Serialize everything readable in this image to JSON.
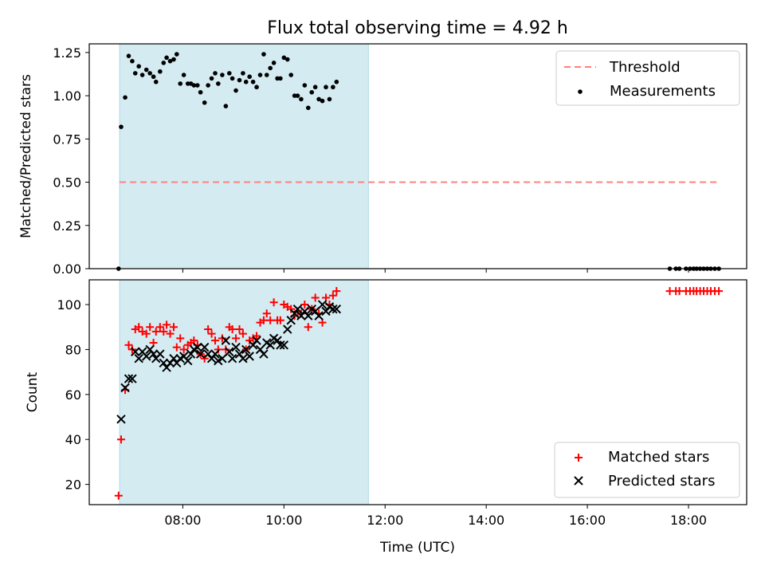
{
  "chart_data": [
    {
      "type": "scatter",
      "title": "Flux total observing time = 4.92 h",
      "xlabel": "",
      "ylabel": "Matched/Predicted stars",
      "x_unit": "time (UTC), hours",
      "xlim": [
        6.15,
        19.15
      ],
      "ylim": [
        0,
        1.3
      ],
      "yticks": [
        0,
        0.25,
        0.5,
        0.75,
        1.0,
        1.25
      ],
      "yticklabels": [
        "0.00",
        "0.25",
        "0.50",
        "0.75",
        "1.00",
        "1.25"
      ],
      "xticks": [
        8,
        10,
        12,
        14,
        16,
        18
      ],
      "shaded_interval": [
        6.75,
        11.67
      ],
      "legend_position": "top-right",
      "colors": {
        "shade": "#add8e6",
        "threshold": "#ff7f7f",
        "points": "#000000"
      },
      "threshold": {
        "name": "Threshold",
        "value": 0.5,
        "x": [
          6.75,
          18.6
        ]
      },
      "series": [
        {
          "name": "Measurements",
          "points": [
            [
              6.73,
              0.0
            ],
            [
              6.78,
              0.82
            ],
            [
              6.86,
              0.99
            ],
            [
              6.93,
              1.23
            ],
            [
              7.0,
              1.2
            ],
            [
              7.06,
              1.13
            ],
            [
              7.13,
              1.17
            ],
            [
              7.2,
              1.12
            ],
            [
              7.28,
              1.15
            ],
            [
              7.35,
              1.13
            ],
            [
              7.42,
              1.11
            ],
            [
              7.47,
              1.08
            ],
            [
              7.55,
              1.14
            ],
            [
              7.62,
              1.19
            ],
            [
              7.68,
              1.22
            ],
            [
              7.75,
              1.2
            ],
            [
              7.82,
              1.21
            ],
            [
              7.88,
              1.24
            ],
            [
              7.95,
              1.07
            ],
            [
              8.02,
              1.12
            ],
            [
              8.1,
              1.07
            ],
            [
              8.16,
              1.07
            ],
            [
              8.22,
              1.06
            ],
            [
              8.29,
              1.06
            ],
            [
              8.35,
              1.02
            ],
            [
              8.43,
              0.96
            ],
            [
              8.5,
              1.06
            ],
            [
              8.57,
              1.1
            ],
            [
              8.64,
              1.13
            ],
            [
              8.7,
              1.07
            ],
            [
              8.78,
              1.12
            ],
            [
              8.85,
              0.94
            ],
            [
              8.92,
              1.13
            ],
            [
              8.98,
              1.1
            ],
            [
              9.05,
              1.03
            ],
            [
              9.12,
              1.09
            ],
            [
              9.19,
              1.13
            ],
            [
              9.25,
              1.08
            ],
            [
              9.32,
              1.11
            ],
            [
              9.39,
              1.08
            ],
            [
              9.46,
              1.05
            ],
            [
              9.53,
              1.12
            ],
            [
              9.6,
              1.24
            ],
            [
              9.66,
              1.12
            ],
            [
              9.73,
              1.16
            ],
            [
              9.8,
              1.19
            ],
            [
              9.87,
              1.1
            ],
            [
              9.93,
              1.1
            ],
            [
              10.0,
              1.22
            ],
            [
              10.07,
              1.21
            ],
            [
              10.14,
              1.12
            ],
            [
              10.21,
              1.0
            ],
            [
              10.27,
              1.0
            ],
            [
              10.34,
              0.98
            ],
            [
              10.41,
              1.06
            ],
            [
              10.48,
              0.93
            ],
            [
              10.55,
              1.02
            ],
            [
              10.62,
              1.05
            ],
            [
              10.69,
              0.98
            ],
            [
              10.76,
              0.97
            ],
            [
              10.83,
              1.05
            ],
            [
              10.9,
              0.98
            ],
            [
              10.97,
              1.05
            ],
            [
              11.04,
              1.08
            ],
            [
              17.63,
              0.0
            ],
            [
              17.75,
              0.0
            ],
            [
              17.82,
              0.0
            ],
            [
              17.95,
              0.0
            ],
            [
              18.03,
              0.0
            ],
            [
              18.1,
              0.0
            ],
            [
              18.16,
              0.0
            ],
            [
              18.23,
              0.0
            ],
            [
              18.3,
              0.0
            ],
            [
              18.37,
              0.0
            ],
            [
              18.44,
              0.0
            ],
            [
              18.52,
              0.0
            ],
            [
              18.6,
              0.0
            ]
          ]
        }
      ],
      "legend": [
        "Threshold",
        "Measurements"
      ]
    },
    {
      "type": "scatter",
      "title": "",
      "xlabel": "Time (UTC)",
      "ylabel": "Count",
      "x_unit": "time (UTC), hours",
      "xlim": [
        6.15,
        19.15
      ],
      "ylim": [
        11,
        111
      ],
      "yticks": [
        20,
        40,
        60,
        80,
        100
      ],
      "yticklabels": [
        "20",
        "40",
        "60",
        "80",
        "100"
      ],
      "xticks": [
        8,
        10,
        12,
        14,
        16,
        18
      ],
      "xticklabels": [
        "08:00",
        "10:00",
        "12:00",
        "14:00",
        "16:00",
        "18:00"
      ],
      "shaded_interval": [
        6.75,
        11.67
      ],
      "legend_position": "bottom-right",
      "colors": {
        "shade": "#add8e6",
        "matched": "#ff0000",
        "predicted": "#000000"
      },
      "series": [
        {
          "name": "Matched stars",
          "marker": "+",
          "points": [
            [
              6.73,
              15
            ],
            [
              6.78,
              40
            ],
            [
              6.86,
              62
            ],
            [
              6.93,
              82
            ],
            [
              7.0,
              80
            ],
            [
              7.06,
              89
            ],
            [
              7.13,
              90
            ],
            [
              7.2,
              88
            ],
            [
              7.28,
              87
            ],
            [
              7.35,
              90
            ],
            [
              7.42,
              83
            ],
            [
              7.47,
              88
            ],
            [
              7.55,
              90
            ],
            [
              7.62,
              88
            ],
            [
              7.68,
              91
            ],
            [
              7.75,
              87
            ],
            [
              7.82,
              90
            ],
            [
              7.88,
              81
            ],
            [
              7.95,
              85
            ],
            [
              8.02,
              80
            ],
            [
              8.1,
              82
            ],
            [
              8.16,
              83
            ],
            [
              8.22,
              84
            ],
            [
              8.29,
              82
            ],
            [
              8.35,
              78
            ],
            [
              8.43,
              76
            ],
            [
              8.5,
              89
            ],
            [
              8.57,
              87
            ],
            [
              8.64,
              84
            ],
            [
              8.7,
              80
            ],
            [
              8.78,
              85
            ],
            [
              8.85,
              80
            ],
            [
              8.92,
              90
            ],
            [
              8.98,
              89
            ],
            [
              9.05,
              85
            ],
            [
              9.12,
              89
            ],
            [
              9.19,
              87
            ],
            [
              9.25,
              80
            ],
            [
              9.32,
              84
            ],
            [
              9.39,
              85
            ],
            [
              9.46,
              86
            ],
            [
              9.53,
              92
            ],
            [
              9.6,
              93
            ],
            [
              9.66,
              96
            ],
            [
              9.73,
              93
            ],
            [
              9.8,
              101
            ],
            [
              9.87,
              93
            ],
            [
              9.93,
              93
            ],
            [
              10.0,
              100
            ],
            [
              10.07,
              99
            ],
            [
              10.14,
              98
            ],
            [
              10.21,
              95
            ],
            [
              10.27,
              97
            ],
            [
              10.34,
              96
            ],
            [
              10.41,
              100
            ],
            [
              10.48,
              90
            ],
            [
              10.55,
              98
            ],
            [
              10.62,
              103
            ],
            [
              10.69,
              96
            ],
            [
              10.76,
              92
            ],
            [
              10.83,
              103
            ],
            [
              10.9,
              100
            ],
            [
              10.97,
              104
            ],
            [
              11.04,
              106
            ],
            [
              17.63,
              106
            ],
            [
              17.75,
              106
            ],
            [
              17.82,
              106
            ],
            [
              17.95,
              106
            ],
            [
              18.03,
              106
            ],
            [
              18.1,
              106
            ],
            [
              18.16,
              106
            ],
            [
              18.23,
              106
            ],
            [
              18.3,
              106
            ],
            [
              18.37,
              106
            ],
            [
              18.44,
              106
            ],
            [
              18.52,
              106
            ],
            [
              18.6,
              106
            ]
          ]
        },
        {
          "name": "Predicted stars",
          "marker": "x",
          "points": [
            [
              6.78,
              49
            ],
            [
              6.86,
              63
            ],
            [
              6.93,
              67
            ],
            [
              7.0,
              67
            ],
            [
              7.06,
              79
            ],
            [
              7.13,
              76
            ],
            [
              7.2,
              79
            ],
            [
              7.28,
              77
            ],
            [
              7.35,
              80
            ],
            [
              7.42,
              78
            ],
            [
              7.47,
              76
            ],
            [
              7.55,
              78
            ],
            [
              7.62,
              74
            ],
            [
              7.68,
              72
            ],
            [
              7.75,
              74
            ],
            [
              7.82,
              76
            ],
            [
              7.88,
              74
            ],
            [
              7.95,
              76
            ],
            [
              8.02,
              77
            ],
            [
              8.1,
              75
            ],
            [
              8.16,
              78
            ],
            [
              8.22,
              80
            ],
            [
              8.29,
              81
            ],
            [
              8.35,
              78
            ],
            [
              8.43,
              81
            ],
            [
              8.5,
              78
            ],
            [
              8.57,
              76
            ],
            [
              8.64,
              78
            ],
            [
              8.7,
              75
            ],
            [
              8.78,
              76
            ],
            [
              8.85,
              84
            ],
            [
              8.92,
              79
            ],
            [
              8.98,
              76
            ],
            [
              9.05,
              81
            ],
            [
              9.12,
              78
            ],
            [
              9.19,
              76
            ],
            [
              9.25,
              80
            ],
            [
              9.32,
              77
            ],
            [
              9.39,
              82
            ],
            [
              9.46,
              84
            ],
            [
              9.53,
              80
            ],
            [
              9.6,
              78
            ],
            [
              9.66,
              83
            ],
            [
              9.73,
              82
            ],
            [
              9.8,
              85
            ],
            [
              9.87,
              84
            ],
            [
              9.93,
              82
            ],
            [
              10.0,
              82
            ],
            [
              10.07,
              89
            ],
            [
              10.14,
              93
            ],
            [
              10.21,
              96
            ],
            [
              10.27,
              98
            ],
            [
              10.34,
              95
            ],
            [
              10.41,
              97
            ],
            [
              10.48,
              95
            ],
            [
              10.55,
              98
            ],
            [
              10.62,
              97
            ],
            [
              10.69,
              95
            ],
            [
              10.76,
              100
            ],
            [
              10.83,
              97
            ],
            [
              10.9,
              99
            ],
            [
              10.97,
              98
            ],
            [
              11.04,
              98
            ]
          ]
        }
      ],
      "legend": [
        "Matched stars",
        "Predicted stars"
      ]
    }
  ]
}
